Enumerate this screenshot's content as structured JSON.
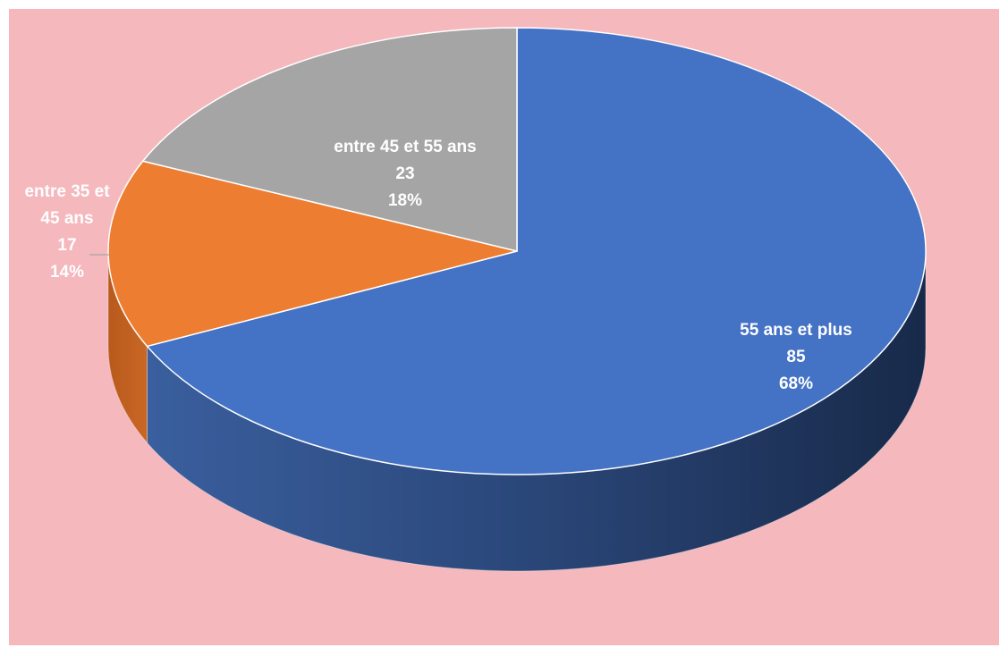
{
  "chart_data": {
    "type": "pie",
    "style": "3d",
    "background_color": "#F4B8BD",
    "title": "",
    "legend": "none",
    "slices": [
      {
        "label_lines": [
          "55 ans et plus"
        ],
        "value": 85,
        "percent": "68%",
        "color": "#4472C4"
      },
      {
        "label_lines": [
          "entre 35 et",
          "45 ans"
        ],
        "value": 17,
        "percent": "14%",
        "color": "#ED7D31"
      },
      {
        "label_lines": [
          "entre 45 et 55 ans"
        ],
        "value": 23,
        "percent": "18%",
        "color": "#A5A5A5"
      }
    ]
  }
}
